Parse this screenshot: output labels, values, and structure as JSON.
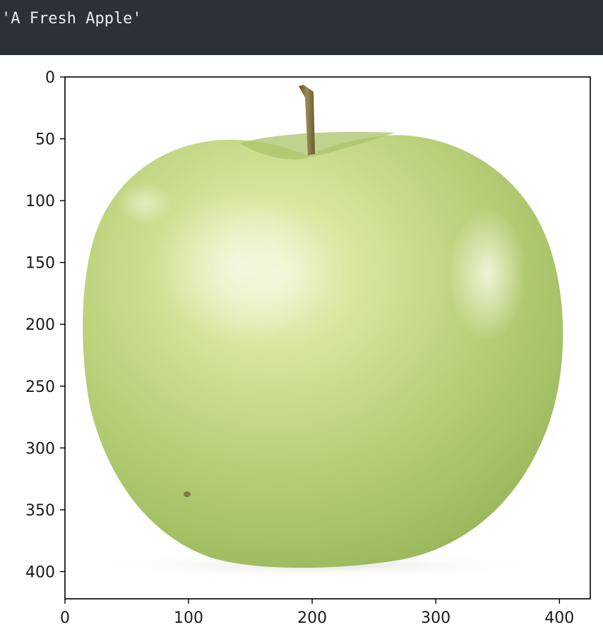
{
  "output": {
    "text": "'A Fresh Apple'"
  },
  "figure": {
    "image_subject": "green apple",
    "x_ticks": [
      "0",
      "100",
      "200",
      "300",
      "400"
    ],
    "y_ticks": [
      "0",
      "50",
      "100",
      "150",
      "200",
      "250",
      "300",
      "350",
      "400"
    ],
    "x_range": [
      0,
      425
    ],
    "y_range": [
      0,
      422
    ]
  },
  "colors": {
    "output_bg": "#2b3137",
    "output_text": "#e9ecef",
    "apple_light": "#e8f0c0",
    "apple_mid": "#bcd27c",
    "apple_dark": "#8fae52",
    "stem": "#7a6a3c"
  }
}
